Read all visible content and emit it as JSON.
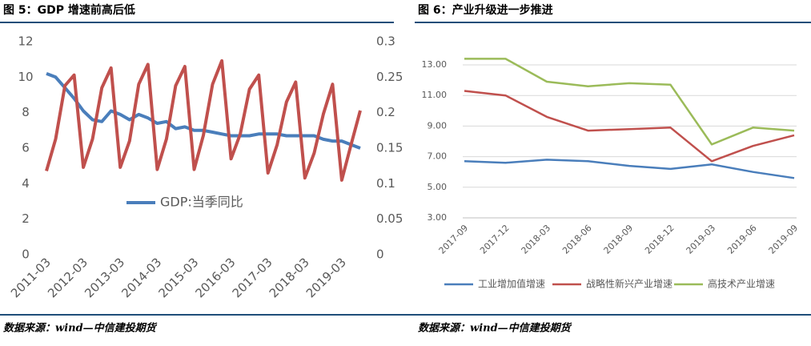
{
  "chart_data": [
    {
      "type": "line",
      "title": "图 5：GDP 增速前高后低",
      "source": "数据来源：wind—中信建投期货",
      "categories": [
        "2011-03",
        null,
        null,
        null,
        "2012-03",
        null,
        null,
        null,
        "2013-03",
        null,
        null,
        null,
        "2014-03",
        null,
        null,
        null,
        "2015-03",
        null,
        null,
        null,
        "2016-03",
        null,
        null,
        null,
        "2017-03",
        null,
        null,
        null,
        "2018-03",
        null,
        null,
        null,
        "2019-03",
        null,
        null
      ],
      "ylim": [
        0,
        12
      ],
      "yticks": [
        0,
        2,
        4,
        6,
        8,
        10,
        12
      ],
      "y2lim": [
        0,
        0.3
      ],
      "y2ticks": [
        0,
        0.05,
        0.1,
        0.15,
        0.2,
        0.25,
        0.3
      ],
      "grid": false,
      "series": [
        {
          "name": "GDP:当季同比",
          "color": "#4a7ebb",
          "values": [
            10.2,
            10.0,
            9.4,
            8.8,
            8.1,
            7.6,
            7.5,
            8.1,
            7.9,
            7.6,
            7.9,
            7.7,
            7.4,
            7.5,
            7.1,
            7.2,
            7.0,
            7.0,
            6.9,
            6.8,
            6.7,
            6.7,
            6.7,
            6.8,
            6.8,
            6.8,
            6.7,
            6.7,
            6.7,
            6.7,
            6.5,
            6.4,
            6.4,
            6.2,
            6.0
          ]
        },
        {
          "color": "#c0504d",
          "axis": "y2",
          "values": [
            0.118,
            0.163,
            0.238,
            0.253,
            0.123,
            0.163,
            0.235,
            0.263,
            0.123,
            0.16,
            0.24,
            0.268,
            0.12,
            0.163,
            0.238,
            0.265,
            0.12,
            0.168,
            0.24,
            0.273,
            0.135,
            0.17,
            0.233,
            0.253,
            0.115,
            0.155,
            0.215,
            0.243,
            0.108,
            0.143,
            0.198,
            0.24,
            0.105,
            0.155,
            0.203
          ]
        }
      ]
    },
    {
      "type": "line",
      "title": "图 6：产业升级进一步推进",
      "source": "数据来源：wind—中信建投期货",
      "categories": [
        "2017-09",
        "2017-12",
        "2018-03",
        "2018-06",
        "2018-09",
        "2018-12",
        "2019-03",
        "2019-06",
        "2019-09"
      ],
      "ylim": [
        3,
        13
      ],
      "yticks": [
        {
          "value": 3,
          "label": "3.00"
        },
        {
          "value": 5,
          "label": "5.00"
        },
        {
          "value": 7,
          "label": "7.00"
        },
        {
          "value": 9,
          "label": "9.00"
        },
        {
          "value": 11,
          "label": "11.00"
        },
        {
          "value": 13,
          "label": "13.00"
        }
      ],
      "grid": true,
      "series": [
        {
          "name": "工业增加值增速",
          "color": "#4a7ebb",
          "values": [
            6.7,
            6.6,
            6.8,
            6.7,
            6.4,
            6.2,
            6.5,
            6.0,
            5.6
          ]
        },
        {
          "name": "战略性新兴产业增速",
          "color": "#c0504d",
          "values": [
            11.3,
            11.0,
            9.6,
            8.7,
            8.8,
            8.9,
            6.7,
            7.7,
            8.4
          ]
        },
        {
          "name": "高技术产业增速",
          "color": "#9bbb59",
          "values": [
            13.4,
            13.4,
            11.9,
            11.6,
            11.8,
            11.7,
            7.8,
            8.9,
            8.7
          ]
        }
      ]
    }
  ]
}
